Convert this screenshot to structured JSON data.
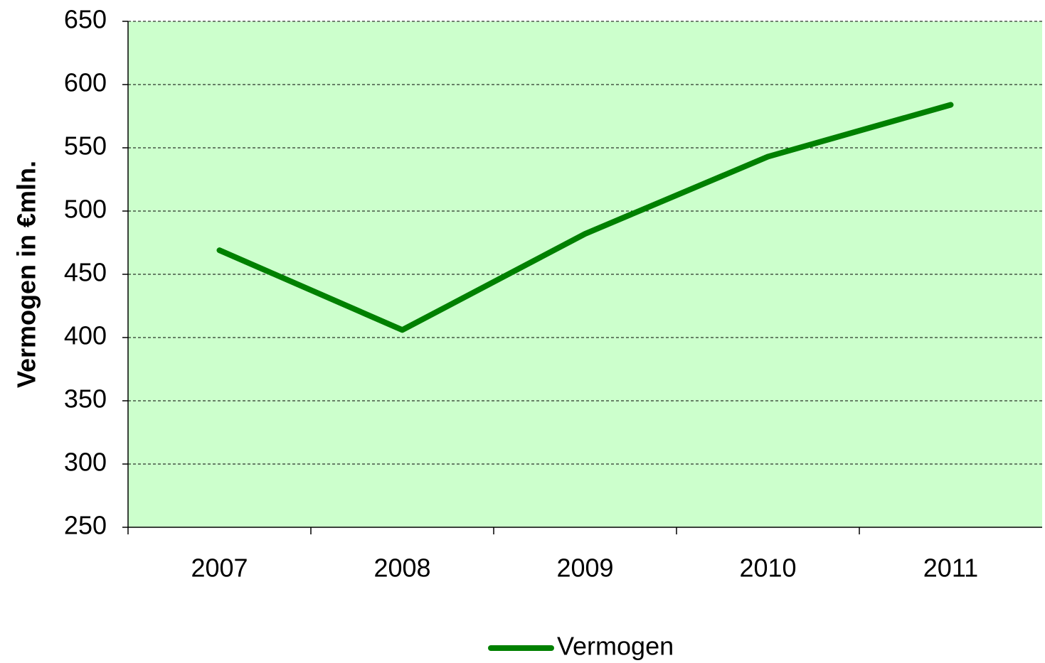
{
  "chart_data": {
    "type": "line",
    "y_label": "Vermogen in €mln.",
    "categories": [
      "2007",
      "2008",
      "2009",
      "2010",
      "2011"
    ],
    "series": [
      {
        "name": "Vermogen",
        "color": "#008000",
        "values": [
          469,
          406,
          482,
          543,
          584
        ]
      }
    ],
    "ylim": [
      250,
      650
    ],
    "yticks": [
      250,
      300,
      350,
      400,
      450,
      500,
      550,
      600,
      650
    ],
    "grid": true,
    "plot_background": "#ccffcc",
    "legend": "bottom"
  }
}
